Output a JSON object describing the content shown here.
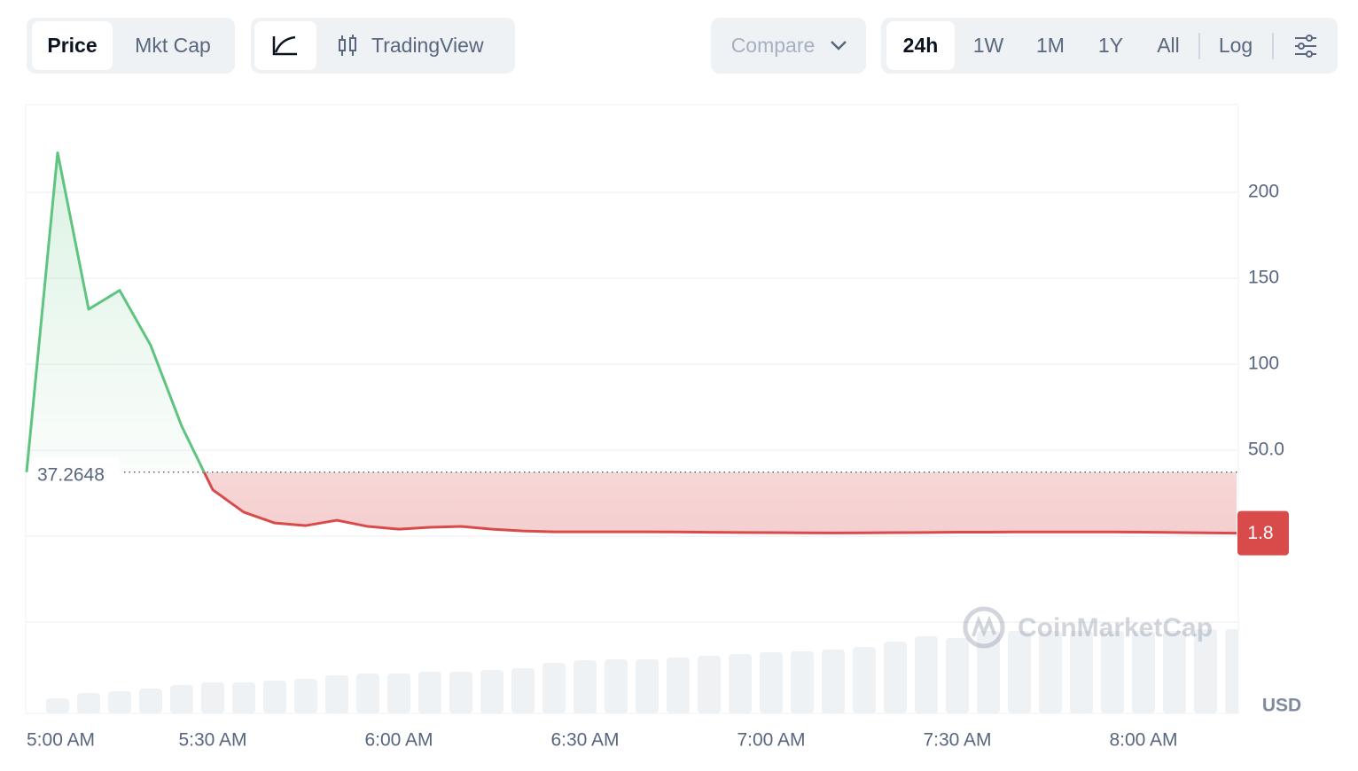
{
  "toolbar": {
    "metric_buttons": [
      "Price",
      "Mkt Cap"
    ],
    "chart_buttons": [
      "TradingView"
    ],
    "compare": "Compare",
    "range_buttons": [
      "24h",
      "1W",
      "1M",
      "1Y",
      "All"
    ],
    "log": "Log"
  },
  "chart_data": {
    "type": "line",
    "x": [
      "5:00 AM",
      "5:05 AM",
      "5:10 AM",
      "5:15 AM",
      "5:20 AM",
      "5:25 AM",
      "5:30 AM",
      "5:35 AM",
      "5:40 AM",
      "5:45 AM",
      "5:50 AM",
      "5:55 AM",
      "6:00 AM",
      "6:05 AM",
      "6:10 AM",
      "6:15 AM",
      "6:20 AM",
      "6:25 AM",
      "6:30 AM",
      "6:35 AM",
      "6:40 AM",
      "6:45 AM",
      "6:50 AM",
      "6:55 AM",
      "7:00 AM",
      "7:05 AM",
      "7:10 AM",
      "7:15 AM",
      "7:20 AM",
      "7:25 AM",
      "7:30 AM",
      "7:35 AM",
      "7:40 AM",
      "7:45 AM",
      "7:50 AM",
      "7:55 AM",
      "8:00 AM",
      "8:05 AM",
      "8:10 AM",
      "8:15 AM"
    ],
    "values": [
      37.2648,
      223,
      132,
      143,
      111,
      64,
      27,
      14,
      7.7,
      6.2,
      9.3,
      5.7,
      4.1,
      5.2,
      5.7,
      4.1,
      3.1,
      2.6,
      2.6,
      2.6,
      2.6,
      2.5,
      2.3,
      2.2,
      2.1,
      2.0,
      1.9,
      2.0,
      2.1,
      2.2,
      2.4,
      2.4,
      2.5,
      2.5,
      2.5,
      2.5,
      2.4,
      2.2,
      2.0,
      1.8
    ],
    "volume": [
      null,
      17,
      23,
      25,
      28,
      32,
      35,
      35,
      37,
      39,
      43,
      45,
      45,
      47,
      47,
      49,
      51,
      57,
      60,
      61,
      61,
      63,
      65,
      67,
      69,
      70,
      72,
      75,
      81,
      87,
      85,
      93,
      93,
      93,
      93,
      93,
      93,
      93,
      95,
      95
    ],
    "baseline": 37.2648,
    "up_color": "#5ec47f",
    "down_color": "#d94a4a",
    "volume_color": "#eff2f5",
    "xlim": [
      "5:00 AM",
      "8:15 AM"
    ],
    "xticks": [
      "5:00 AM",
      "5:30 AM",
      "6:00 AM",
      "6:30 AM",
      "7:00 AM",
      "7:30 AM",
      "8:00 AM"
    ],
    "ylim": [
      -103,
      251
    ],
    "yticks": [
      {
        "value": -50,
        "label": null
      },
      {
        "value": 0,
        "label": null
      },
      {
        "value": 50,
        "label": "50.0"
      },
      100,
      150,
      200
    ],
    "grid": true,
    "currency": "USD",
    "watermark": "CoinMarketCap"
  }
}
